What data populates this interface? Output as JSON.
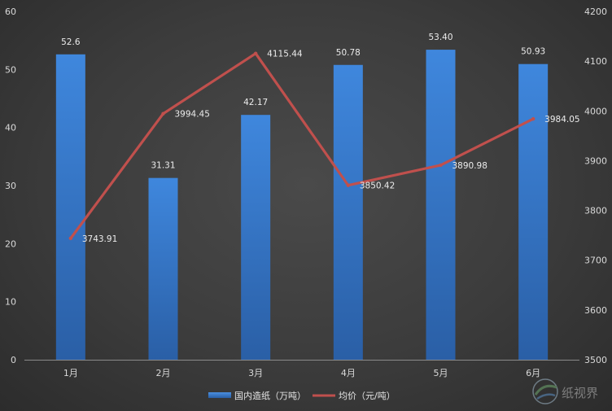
{
  "chart_data": {
    "type": "bar",
    "categories": [
      "1月",
      "2月",
      "3月",
      "4月",
      "5月",
      "6月"
    ],
    "series": [
      {
        "name": "国内造纸（万吨）",
        "type": "bar",
        "axis": "left",
        "values": [
          52.6,
          31.31,
          42.17,
          50.78,
          53.4,
          50.93
        ],
        "labels": [
          "52.6",
          "31.31",
          "42.17",
          "50.78",
          "53.40",
          "50.93"
        ],
        "color": "#3b7fd4"
      },
      {
        "name": "均价（元/吨）",
        "type": "line",
        "axis": "right",
        "values": [
          3743.91,
          3994.45,
          4115.44,
          3850.42,
          3890.98,
          3984.05
        ],
        "labels": [
          "3743.91",
          "3994.45",
          "4115.44",
          "3850.42",
          "3890.98",
          "3984.05"
        ],
        "color": "#c0504d"
      }
    ],
    "ylim_left": [
      0,
      60
    ],
    "yticks_left": [
      0,
      10,
      20,
      30,
      40,
      50,
      60
    ],
    "ylim_right": [
      3500,
      4200
    ],
    "yticks_right": [
      3500,
      3600,
      3700,
      3800,
      3900,
      4000,
      4100,
      4200
    ],
    "grid": false,
    "legend_position": "bottom"
  }
}
